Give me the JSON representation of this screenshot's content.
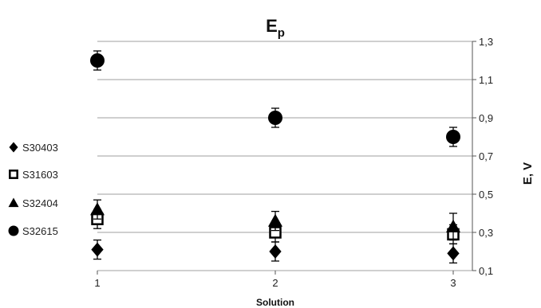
{
  "chart_data": {
    "type": "scatter",
    "title": "E",
    "title_subscript": "p",
    "xlabel": "Solution",
    "ylabel": "E, V",
    "x": [
      1,
      2,
      3
    ],
    "x_tick_labels": [
      "1",
      "2",
      "3"
    ],
    "ylim": [
      0.1,
      1.3
    ],
    "y_tick_labels": [
      "0,1",
      "0,3",
      "0,5",
      "0,7",
      "0,9",
      "1,1",
      "1,3"
    ],
    "y_axis_side": "right",
    "grid": true,
    "legend_position": "left",
    "error_bars": true,
    "series": [
      {
        "name": "S30403",
        "marker": "diamond",
        "values": [
          0.21,
          0.2,
          0.19
        ],
        "errors": [
          0.05,
          0.05,
          0.05
        ]
      },
      {
        "name": "S31603",
        "marker": "square-open",
        "values": [
          0.37,
          0.3,
          0.29
        ],
        "errors": [
          0.05,
          0.05,
          0.05
        ]
      },
      {
        "name": "S32404",
        "marker": "triangle",
        "values": [
          0.42,
          0.36,
          0.33
        ],
        "errors": [
          0.05,
          0.05,
          0.07
        ]
      },
      {
        "name": "S32615",
        "marker": "circle",
        "values": [
          1.2,
          0.9,
          0.8
        ],
        "errors": [
          0.05,
          0.05,
          0.05
        ]
      }
    ]
  },
  "colors": {
    "marker": "#000000",
    "grid": "#bfbfbf",
    "text": "#222222"
  }
}
